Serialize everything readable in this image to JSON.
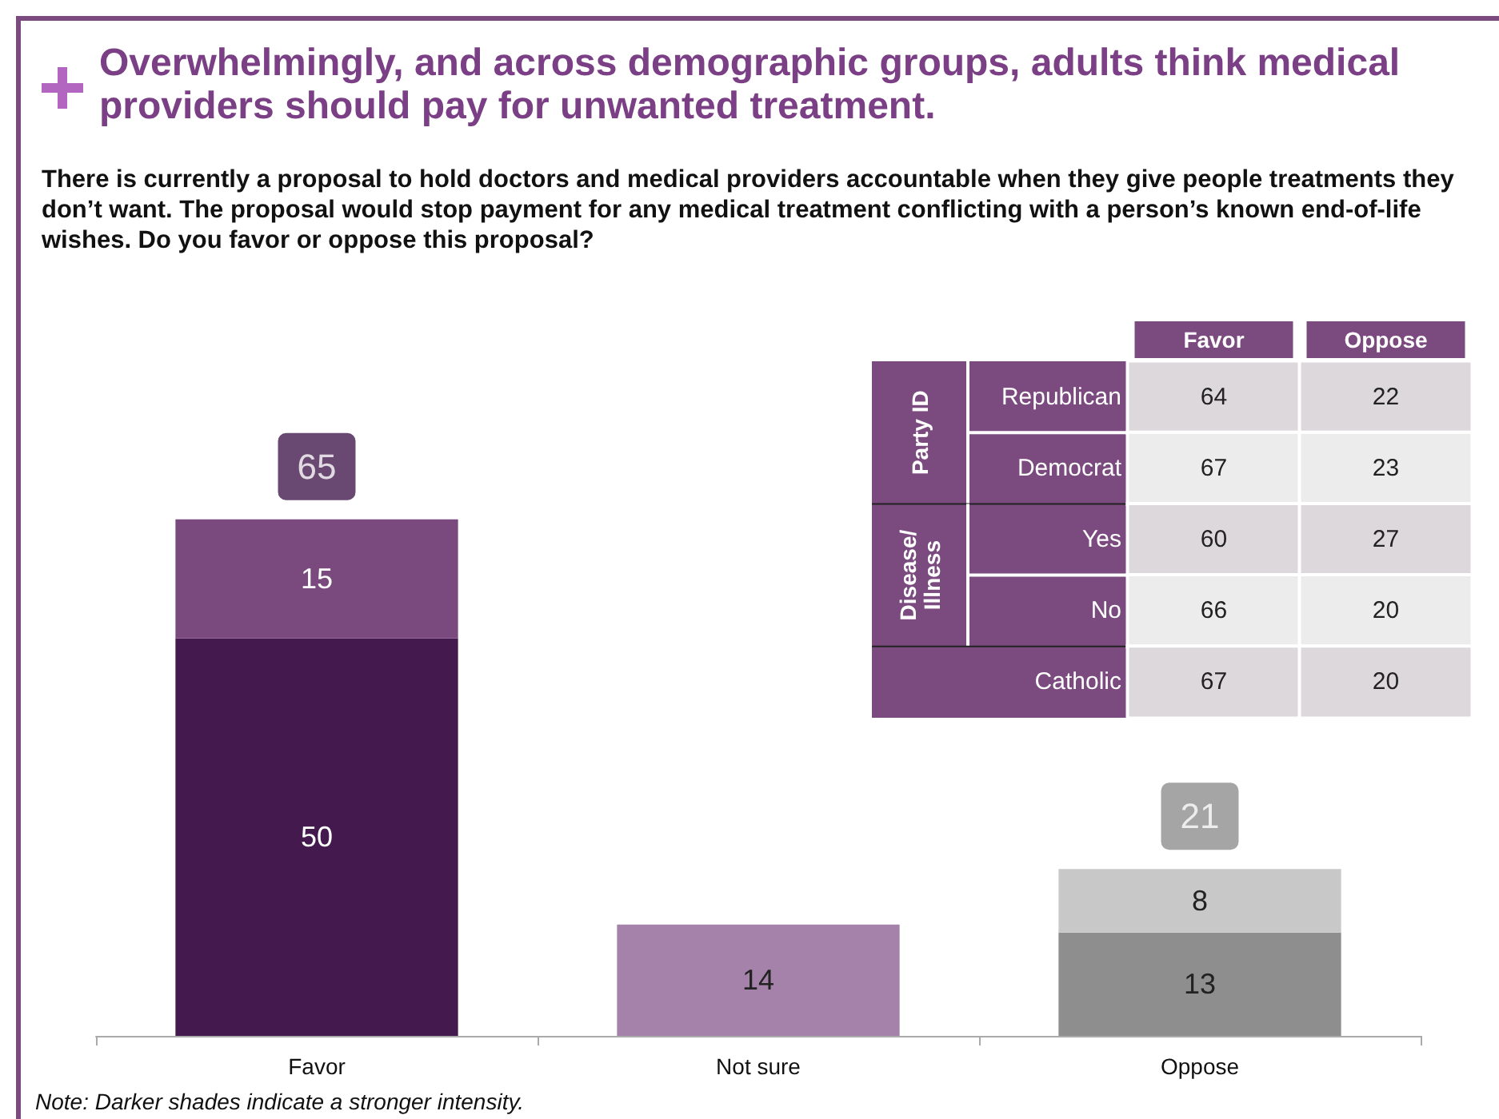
{
  "chart_data": [
    {
      "type": "bar",
      "title": "Overwhelmingly, and across demographic groups, adults think medical providers should pay for unwanted treatment.",
      "subtitle": "There is currently a proposal to hold doctors and medical providers accountable when they give people treatments they don’t want. The proposal would stop payment for any medical treatment conflicting with a person’s known end-of-life wishes. Do you favor or oppose this proposal?",
      "categories": [
        "Favor",
        "Not sure",
        "Oppose"
      ],
      "stacked": true,
      "series": [
        {
          "values": [
            50,
            14,
            13
          ],
          "colors": [
            "#441a4e",
            "#a582a9",
            "#8e8e8e"
          ]
        },
        {
          "values": [
            15,
            null,
            8
          ],
          "colors": [
            "#7a4a7e",
            null,
            "#c8c8c8"
          ]
        }
      ],
      "totals": [
        "65",
        null,
        "21"
      ],
      "data_labels": true,
      "tick_labels": "x",
      "annotations": [
        "Note: Darker shades indicate a stronger intensity."
      ]
    },
    {
      "type": "heatmap",
      "categories": [
        "Favor",
        "Oppose"
      ],
      "y_categories": [
        "Republican",
        "Democrat",
        "Yes",
        "No",
        "Catholic"
      ],
      "cells": [
        [
          64,
          22
        ],
        [
          67,
          23
        ],
        [
          60,
          27
        ],
        [
          66,
          20
        ],
        [
          67,
          20
        ]
      ],
      "data_labels": true,
      "annotations": [
        "Party ID",
        "Disease/\nIllness"
      ]
    }
  ]
}
